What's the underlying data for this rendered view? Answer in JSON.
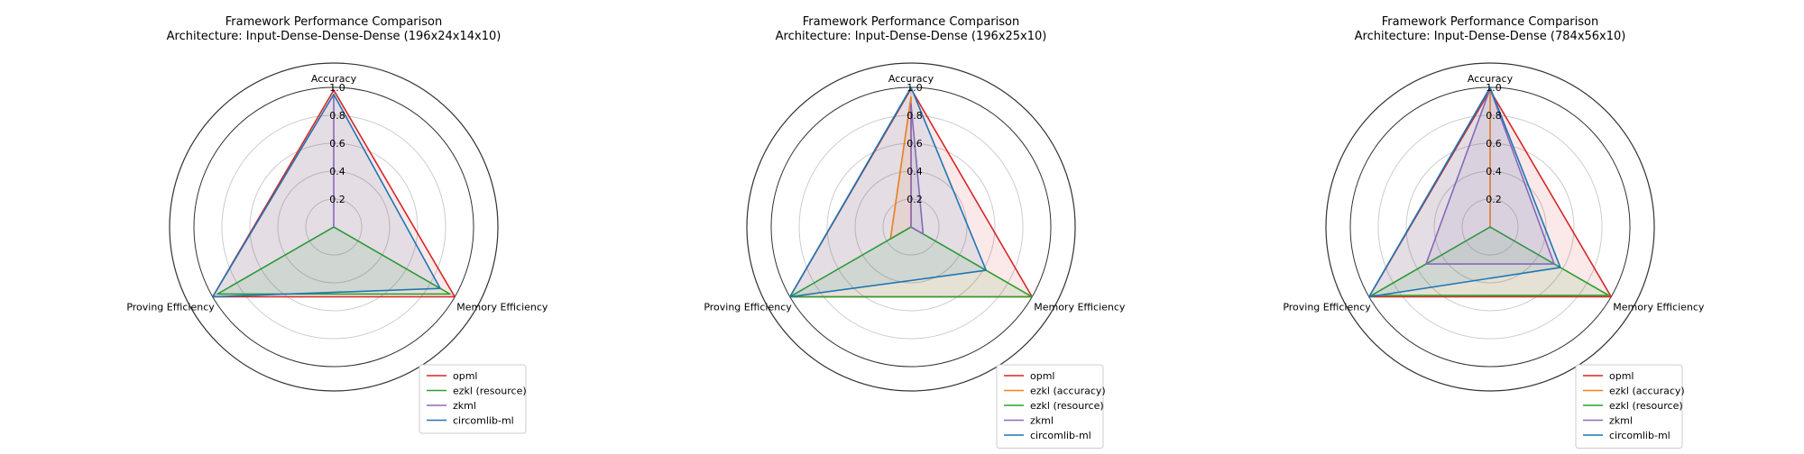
{
  "figure": {
    "background": "#ffffff"
  },
  "chart_data": [
    {
      "type": "radar",
      "title": "Framework Performance Comparison",
      "subtitle": "Architecture: Input-Dense-Dense-Dense (196x24x14x10)",
      "axes": [
        "Accuracy",
        "Memory Efficiency",
        "Proving Efficiency"
      ],
      "rlim": [
        0,
        1.0
      ],
      "ticks": [
        "0.2",
        "0.4",
        "0.6",
        "0.8",
        "1.0"
      ],
      "tick_values": [
        0.2,
        0.4,
        0.6,
        0.8,
        1.0
      ],
      "grid": true,
      "legend": "lower-right",
      "series": [
        {
          "name": "opml",
          "color": "#d62728",
          "values": [
            0.98,
            1.0,
            1.0
          ]
        },
        {
          "name": "ezkl (resource)",
          "color": "#2ca02c",
          "values": [
            0.0,
            0.96,
            0.96
          ]
        },
        {
          "name": "zkml",
          "color": "#9467bd",
          "values": [
            0.93,
            0.0,
            0.0
          ]
        },
        {
          "name": "circomlib-ml",
          "color": "#1f77b4",
          "values": [
            0.95,
            0.88,
            1.0
          ]
        }
      ]
    },
    {
      "type": "radar",
      "title": "Framework Performance Comparison",
      "subtitle": "Architecture: Input-Dense-Dense (196x25x10)",
      "axes": [
        "Accuracy",
        "Memory Efficiency",
        "Proving Efficiency"
      ],
      "rlim": [
        0,
        1.0
      ],
      "ticks": [
        "0.2",
        "0.4",
        "0.6",
        "0.8",
        "1.0"
      ],
      "tick_values": [
        0.2,
        0.4,
        0.6,
        0.8,
        1.0
      ],
      "grid": true,
      "legend": "lower-right",
      "series": [
        {
          "name": "opml",
          "color": "#d62728",
          "values": [
            0.99,
            1.0,
            1.0
          ]
        },
        {
          "name": "ezkl (accuracy)",
          "color": "#ff7f0e",
          "values": [
            0.93,
            0.0,
            0.17
          ]
        },
        {
          "name": "ezkl (resource)",
          "color": "#2ca02c",
          "values": [
            0.0,
            1.0,
            1.0
          ]
        },
        {
          "name": "zkml",
          "color": "#9467bd",
          "values": [
            0.88,
            0.1,
            0.0
          ]
        },
        {
          "name": "circomlib-ml",
          "color": "#1f77b4",
          "values": [
            1.0,
            0.62,
            1.0
          ]
        }
      ]
    },
    {
      "type": "radar",
      "title": "Framework Performance Comparison",
      "subtitle": "Architecture: Input-Dense-Dense (784x56x10)",
      "axes": [
        "Accuracy",
        "Memory Efficiency",
        "Proving Efficiency"
      ],
      "rlim": [
        0,
        1.0
      ],
      "ticks": [
        "0.2",
        "0.4",
        "0.6",
        "0.8",
        "1.0"
      ],
      "tick_values": [
        0.2,
        0.4,
        0.6,
        0.8,
        1.0
      ],
      "grid": true,
      "legend": "lower-right",
      "series": [
        {
          "name": "opml",
          "color": "#d62728",
          "values": [
            0.98,
            1.0,
            1.0
          ]
        },
        {
          "name": "ezkl (accuracy)",
          "color": "#ff7f0e",
          "values": [
            1.0,
            0.0,
            0.0
          ]
        },
        {
          "name": "ezkl (resource)",
          "color": "#2ca02c",
          "values": [
            0.0,
            0.98,
            0.98
          ]
        },
        {
          "name": "zkml",
          "color": "#9467bd",
          "values": [
            0.99,
            0.53,
            0.53
          ]
        },
        {
          "name": "circomlib-ml",
          "color": "#1f77b4",
          "values": [
            1.0,
            0.58,
            1.0
          ]
        }
      ]
    }
  ]
}
